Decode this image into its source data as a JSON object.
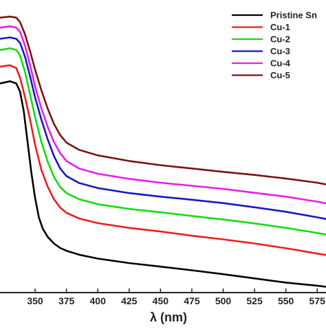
{
  "chart_data": {
    "type": "line",
    "title": "",
    "xlabel": "λ (nm)",
    "ylabel": "",
    "xlim": [
      322,
      582
    ],
    "ylim": [
      0,
      100
    ],
    "xticks": [
      "350",
      "375",
      "400",
      "425",
      "450",
      "475",
      "500",
      "525",
      "550",
      "575"
    ],
    "grid": false,
    "legend_position": "top-right",
    "series": [
      {
        "name": "Pristine Sn",
        "color": "#000000",
        "points": [
          [
            322,
            75
          ],
          [
            330,
            75.8
          ],
          [
            335,
            75
          ],
          [
            338,
            72
          ],
          [
            341,
            65
          ],
          [
            344,
            54
          ],
          [
            347,
            43
          ],
          [
            350,
            34
          ],
          [
            353,
            27
          ],
          [
            356,
            23
          ],
          [
            360,
            20
          ],
          [
            365,
            17.6
          ],
          [
            370,
            16
          ],
          [
            375,
            15
          ],
          [
            385,
            13.6
          ],
          [
            400,
            12.2
          ],
          [
            425,
            10.6
          ],
          [
            450,
            9.3
          ],
          [
            475,
            8
          ],
          [
            500,
            6.6
          ],
          [
            525,
            5.1
          ],
          [
            550,
            3.6
          ],
          [
            575,
            2.5
          ],
          [
            582,
            2.1
          ]
        ]
      },
      {
        "name": "Cu-1",
        "color": "#ee1c1c",
        "points": [
          [
            322,
            81
          ],
          [
            330,
            81.5
          ],
          [
            335,
            80.5
          ],
          [
            338,
            77
          ],
          [
            342,
            70
          ],
          [
            346,
            62
          ],
          [
            350,
            53
          ],
          [
            355,
            44
          ],
          [
            360,
            38
          ],
          [
            365,
            33.5
          ],
          [
            370,
            30.5
          ],
          [
            375,
            28.6
          ],
          [
            385,
            26.6
          ],
          [
            400,
            24.9
          ],
          [
            425,
            23.2
          ],
          [
            450,
            21.9
          ],
          [
            475,
            20.4
          ],
          [
            500,
            19.1
          ],
          [
            525,
            17.6
          ],
          [
            550,
            15.9
          ],
          [
            575,
            14
          ],
          [
            582,
            13.5
          ]
        ]
      },
      {
        "name": "Cu-2",
        "color": "#11dd11",
        "points": [
          [
            322,
            87
          ],
          [
            330,
            87.6
          ],
          [
            335,
            87
          ],
          [
            338,
            85
          ],
          [
            342,
            79
          ],
          [
            346,
            71
          ],
          [
            350,
            63
          ],
          [
            355,
            54
          ],
          [
            360,
            47
          ],
          [
            365,
            41.5
          ],
          [
            370,
            37.8
          ],
          [
            375,
            35.7
          ],
          [
            385,
            33.5
          ],
          [
            400,
            31.7
          ],
          [
            425,
            30
          ],
          [
            450,
            28.8
          ],
          [
            475,
            27.5
          ],
          [
            500,
            26.2
          ],
          [
            525,
            24.8
          ],
          [
            550,
            23.2
          ],
          [
            575,
            21.4
          ],
          [
            582,
            20.8
          ]
        ]
      },
      {
        "name": "Cu-3",
        "color": "#1616c4",
        "points": [
          [
            322,
            91
          ],
          [
            330,
            91.5
          ],
          [
            335,
            91
          ],
          [
            338,
            89.5
          ],
          [
            342,
            84.5
          ],
          [
            346,
            77.5
          ],
          [
            350,
            70
          ],
          [
            355,
            62
          ],
          [
            360,
            55
          ],
          [
            365,
            49
          ],
          [
            370,
            44.5
          ],
          [
            375,
            41.8
          ],
          [
            385,
            39.3
          ],
          [
            400,
            37.5
          ],
          [
            425,
            35.7
          ],
          [
            450,
            34.4
          ],
          [
            475,
            33.3
          ],
          [
            500,
            32.1
          ],
          [
            525,
            30.6
          ],
          [
            550,
            29
          ],
          [
            575,
            27
          ],
          [
            582,
            26.4
          ]
        ]
      },
      {
        "name": "Cu-4",
        "color": "#e81ee8",
        "points": [
          [
            322,
            95
          ],
          [
            330,
            95.5
          ],
          [
            335,
            95
          ],
          [
            338,
            93.5
          ],
          [
            342,
            88.5
          ],
          [
            346,
            81.5
          ],
          [
            350,
            74
          ],
          [
            355,
            66
          ],
          [
            360,
            59.5
          ],
          [
            365,
            54
          ],
          [
            370,
            50
          ],
          [
            375,
            47.2
          ],
          [
            385,
            44.5
          ],
          [
            400,
            42.6
          ],
          [
            425,
            40.8
          ],
          [
            450,
            39.4
          ],
          [
            475,
            38.3
          ],
          [
            500,
            37.2
          ],
          [
            525,
            35.8
          ],
          [
            550,
            34.4
          ],
          [
            575,
            32.6
          ],
          [
            582,
            32
          ]
        ]
      },
      {
        "name": "Cu-5",
        "color": "#7a1212",
        "points": [
          [
            322,
            98.6
          ],
          [
            330,
            99
          ],
          [
            335,
            98.6
          ],
          [
            338,
            97
          ],
          [
            342,
            92.5
          ],
          [
            346,
            86.5
          ],
          [
            350,
            80
          ],
          [
            355,
            72.5
          ],
          [
            360,
            66
          ],
          [
            365,
            60.5
          ],
          [
            370,
            56.5
          ],
          [
            375,
            53.8
          ],
          [
            385,
            51.2
          ],
          [
            400,
            49.2
          ],
          [
            425,
            47.2
          ],
          [
            450,
            45.7
          ],
          [
            475,
            44.5
          ],
          [
            500,
            43.3
          ],
          [
            525,
            42.2
          ],
          [
            550,
            40.9
          ],
          [
            575,
            39.4
          ],
          [
            582,
            38.8
          ]
        ]
      }
    ]
  }
}
